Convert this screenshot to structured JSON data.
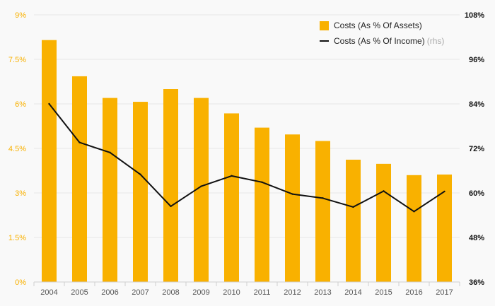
{
  "chart_data": {
    "type": "bar+line",
    "categories": [
      "2004",
      "2005",
      "2006",
      "2007",
      "2008",
      "2009",
      "2010",
      "2011",
      "2012",
      "2013",
      "2014",
      "2015",
      "2016",
      "2017"
    ],
    "series": [
      {
        "name": "Costs (As % Of Assets)",
        "type": "bar",
        "axis": "left",
        "color": "#f9b100",
        "values": [
          8.15,
          6.93,
          6.2,
          6.07,
          6.5,
          6.2,
          5.68,
          5.2,
          4.97,
          4.75,
          4.12,
          3.98,
          3.6,
          3.62
        ]
      },
      {
        "name": "Costs (As % Of Income)",
        "name_suffix": "(rhs)",
        "type": "line",
        "axis": "right",
        "color": "#111111",
        "values": [
          84.0,
          73.6,
          70.9,
          65.0,
          56.4,
          61.8,
          64.6,
          62.9,
          59.7,
          58.6,
          56.2,
          60.5,
          55.0,
          60.4
        ]
      }
    ],
    "y_left": {
      "range": [
        0,
        9
      ],
      "ticks": [
        0,
        1.5,
        3,
        4.5,
        6,
        7.5,
        9
      ],
      "tick_labels": [
        "0%",
        "1.5%",
        "3%",
        "4.5%",
        "6%",
        "7.5%",
        "9%"
      ],
      "color": "#f9b100"
    },
    "y_right": {
      "range": [
        36,
        108
      ],
      "ticks": [
        36,
        48,
        60,
        72,
        84,
        96,
        108
      ],
      "tick_labels": [
        "36%",
        "48%",
        "60%",
        "72%",
        "84%",
        "96%",
        "108%"
      ],
      "color": "#111111"
    },
    "grid": true,
    "legend_position": "top-right"
  }
}
